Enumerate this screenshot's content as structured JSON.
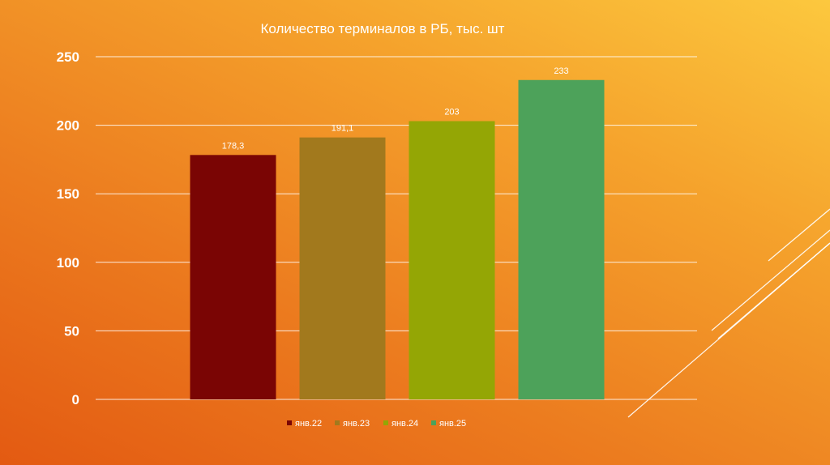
{
  "chart_data": {
    "type": "bar",
    "title": "Количество терминалов в РБ, тыс. шт",
    "categories": [
      "янв.22",
      "янв.23",
      "янв.24",
      "янв.25"
    ],
    "values": [
      178.3,
      191.1,
      203,
      233
    ],
    "data_labels": [
      "178,3",
      "191,1",
      "203",
      "233"
    ],
    "colors": [
      "#7a0504",
      "#a2791d",
      "#94a605",
      "#4da25a"
    ],
    "ylim": [
      0,
      250
    ],
    "yticks": [
      0,
      50,
      100,
      150,
      200,
      250
    ],
    "grid": true,
    "legend": "bottom",
    "xlabel": "",
    "ylabel": ""
  }
}
